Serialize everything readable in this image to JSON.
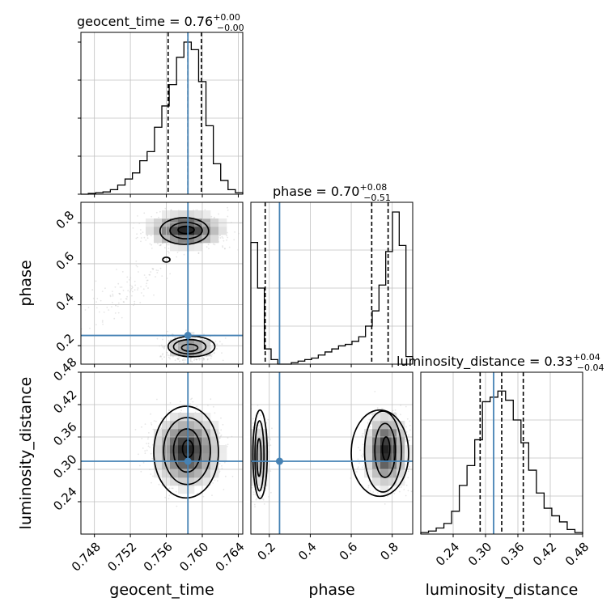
{
  "chart_data": {
    "type": "corner",
    "colors": {
      "truth": "#4682b4",
      "hist": "#000000",
      "grid": "#c0c0c0",
      "points": "#9a9a9a"
    },
    "parameters": [
      "geocent_time",
      "phase",
      "luminosity_distance"
    ],
    "axis_labels": {
      "x": [
        "geocent_time",
        "phase",
        "luminosity_distance"
      ],
      "y": [
        "phase",
        "luminosity_distance"
      ]
    },
    "titles": [
      {
        "name": "geocent_time",
        "median": "0.76",
        "plus": "+0.00",
        "minus": "−0.00"
      },
      {
        "name": "phase",
        "median": "0.70",
        "plus": "+0.08",
        "minus": "−0.51"
      },
      {
        "name": "luminosity_distance",
        "median": "0.33",
        "plus": "+0.04",
        "minus": "−0.04"
      }
    ],
    "ranges": {
      "geocent_time": [
        0.7465,
        0.7645
      ],
      "phase": [
        0.11,
        0.9
      ],
      "luminosity_distance": [
        0.18,
        0.48
      ]
    },
    "ticks": {
      "geocent_time": {
        "values": [
          0.748,
          0.752,
          0.756,
          0.76,
          0.764
        ],
        "labels": [
          "0.748",
          "0.752",
          "0.756",
          "0.760",
          "0.764"
        ]
      },
      "phase": {
        "values": [
          0.2,
          0.4,
          0.6,
          0.8
        ],
        "labels": [
          "0.2",
          "0.4",
          "0.6",
          "0.8"
        ]
      },
      "luminosity_distance": {
        "values": [
          0.24,
          0.3,
          0.36,
          0.42,
          0.48
        ],
        "labels": [
          "0.24",
          "0.30",
          "0.36",
          "0.42",
          "0.48"
        ]
      }
    },
    "truth": {
      "geocent_time": 0.7584,
      "phase": 0.25,
      "luminosity_distance": 0.315
    },
    "quantiles": {
      "geocent_time": [
        0.7562,
        0.7584,
        0.7599
      ],
      "phase": [
        0.18,
        0.7,
        0.78
      ],
      "luminosity_distance": [
        0.29,
        0.33,
        0.37
      ]
    },
    "hist_1d": {
      "geocent_time": {
        "density": [
          0.0,
          0.005,
          0.01,
          0.015,
          0.03,
          0.06,
          0.1,
          0.14,
          0.22,
          0.28,
          0.44,
          0.58,
          0.72,
          0.9,
          1.0,
          0.95,
          0.74,
          0.45,
          0.2,
          0.09,
          0.03,
          0.01
        ]
      },
      "phase": {
        "density": [
          0.8,
          0.5,
          0.1,
          0.03,
          0.0,
          0.0,
          0.01,
          0.02,
          0.03,
          0.04,
          0.06,
          0.08,
          0.1,
          0.12,
          0.13,
          0.15,
          0.18,
          0.25,
          0.35,
          0.52,
          0.74,
          1.0,
          0.78,
          0.05
        ]
      },
      "luminosity_distance": {
        "density": [
          0.01,
          0.02,
          0.04,
          0.07,
          0.15,
          0.32,
          0.45,
          0.62,
          0.87,
          0.9,
          0.94,
          0.88,
          0.75,
          0.6,
          0.42,
          0.27,
          0.17,
          0.12,
          0.08,
          0.03,
          0.01
        ]
      }
    },
    "panels_2d": [
      {
        "x": "geocent_time",
        "y": "phase",
        "modes": [
          {
            "cx": 0.7582,
            "cy": 0.765,
            "sx": 0.002,
            "sy": 0.04,
            "w": 1.0
          },
          {
            "cx": 0.7586,
            "cy": 0.19,
            "sx": 0.0014,
            "sy": 0.03,
            "w": 0.55
          },
          {
            "cx": 0.7515,
            "cy": 0.47,
            "sx": 0.0025,
            "sy": 0.08,
            "w": 0.12,
            "rho": 0.8
          }
        ],
        "contours": [
          {
            "cx": 0.7582,
            "cy": 0.765,
            "rx": 0.0009,
            "ry": 0.018
          },
          {
            "cx": 0.7582,
            "cy": 0.762,
            "rx": 0.0018,
            "ry": 0.04
          },
          {
            "cx": 0.758,
            "cy": 0.76,
            "rx": 0.0027,
            "ry": 0.065
          },
          {
            "cx": 0.7586,
            "cy": 0.19,
            "rx": 0.0009,
            "ry": 0.017
          },
          {
            "cx": 0.7586,
            "cy": 0.195,
            "rx": 0.0018,
            "ry": 0.035
          },
          {
            "cx": 0.7588,
            "cy": 0.196,
            "rx": 0.0026,
            "ry": 0.05
          },
          {
            "cx": 0.756,
            "cy": 0.62,
            "rx": 0.0004,
            "ry": 0.012
          }
        ]
      },
      {
        "x": "geocent_time",
        "y": "luminosity_distance",
        "modes": [
          {
            "cx": 0.7583,
            "cy": 0.335,
            "sx": 0.0018,
            "sy": 0.033,
            "w": 1.0
          }
        ],
        "contours": [
          {
            "cx": 0.7584,
            "cy": 0.338,
            "rx": 0.0006,
            "ry": 0.016
          },
          {
            "cx": 0.7583,
            "cy": 0.335,
            "rx": 0.0015,
            "ry": 0.04
          },
          {
            "cx": 0.7583,
            "cy": 0.334,
            "rx": 0.0026,
            "ry": 0.062
          },
          {
            "cx": 0.7582,
            "cy": 0.332,
            "rx": 0.0036,
            "ry": 0.085
          }
        ]
      },
      {
        "x": "phase",
        "y": "luminosity_distance",
        "modes": [
          {
            "cx": 0.77,
            "cy": 0.335,
            "sx": 0.05,
            "sy": 0.033,
            "w": 1.0
          },
          {
            "cx": 0.15,
            "cy": 0.325,
            "sx": 0.022,
            "sy": 0.033,
            "w": 0.5
          }
        ],
        "contours": [
          {
            "cx": 0.77,
            "cy": 0.338,
            "rx": 0.018,
            "ry": 0.022
          },
          {
            "cx": 0.765,
            "cy": 0.335,
            "rx": 0.05,
            "ry": 0.05
          },
          {
            "cx": 0.755,
            "cy": 0.333,
            "rx": 0.09,
            "ry": 0.075
          },
          {
            "cx": 0.74,
            "cy": 0.33,
            "rx": 0.14,
            "ry": 0.08
          },
          {
            "cx": 0.15,
            "cy": 0.322,
            "rx": 0.01,
            "ry": 0.035
          },
          {
            "cx": 0.152,
            "cy": 0.325,
            "rx": 0.022,
            "ry": 0.065
          },
          {
            "cx": 0.155,
            "cy": 0.328,
            "rx": 0.035,
            "ry": 0.082
          }
        ]
      }
    ]
  }
}
